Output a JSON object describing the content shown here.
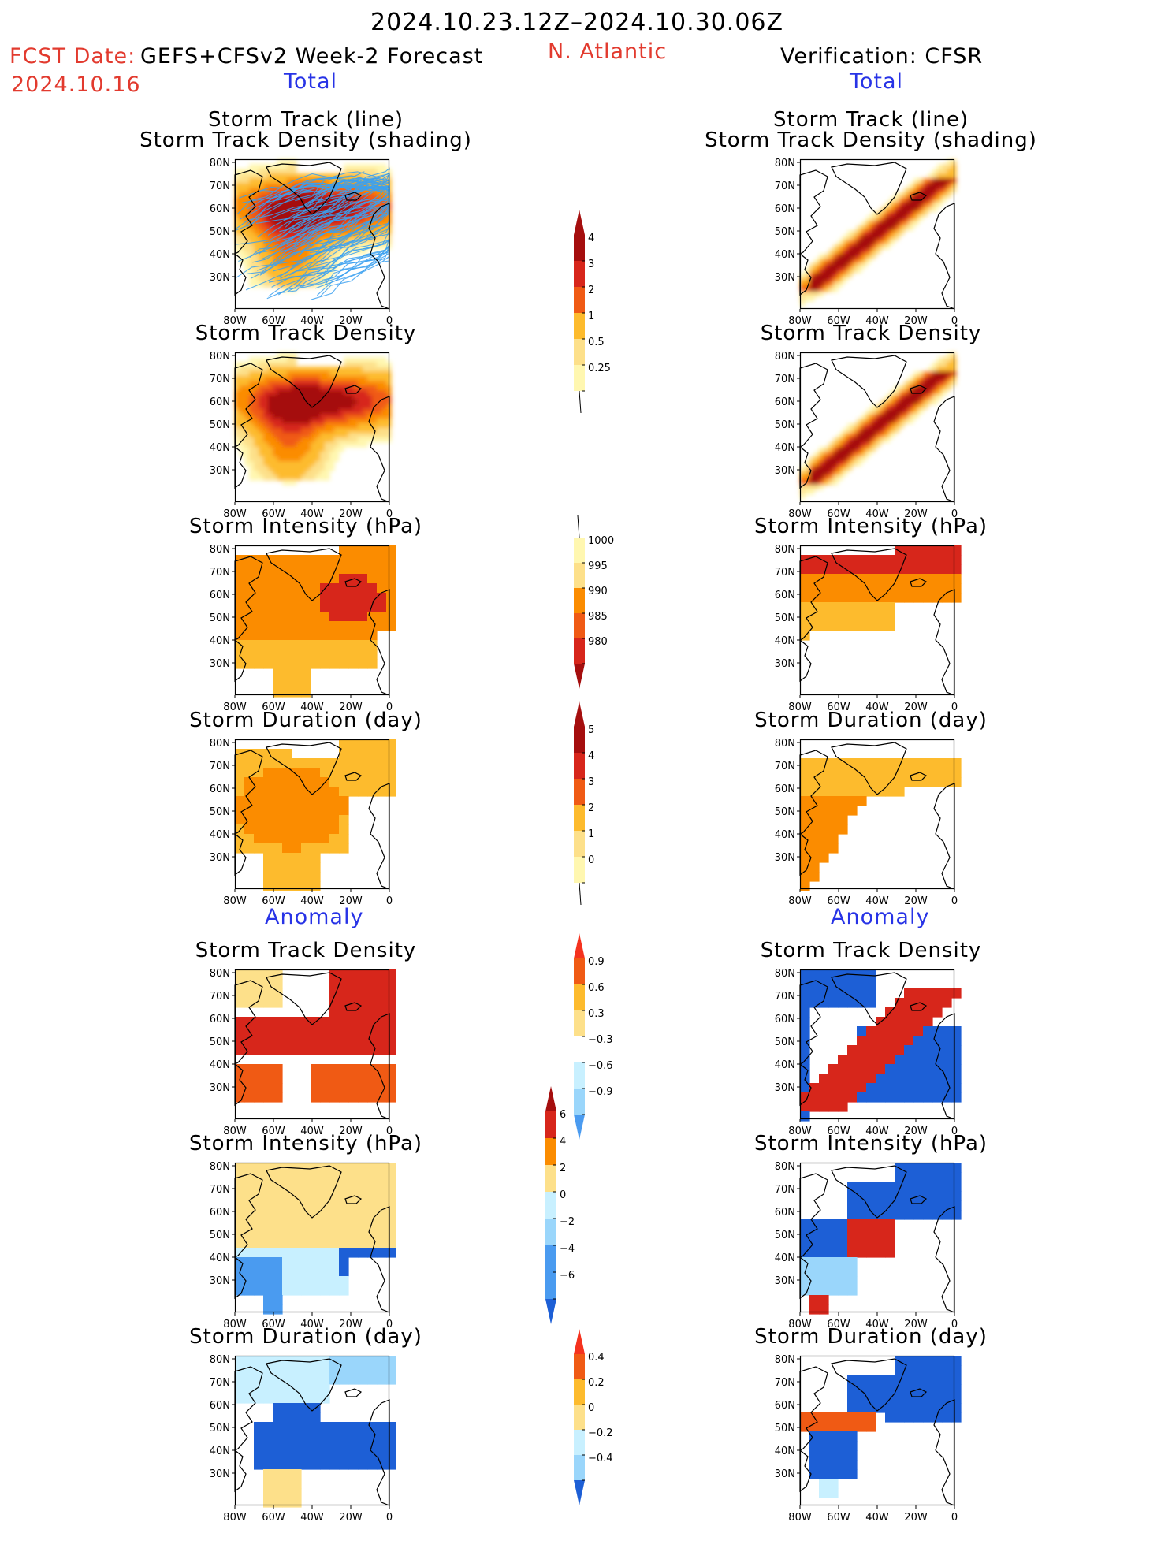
{
  "header": {
    "date_range": "2024.10.23.12Z–2024.10.30.06Z",
    "fcst_label": "FCST Date:",
    "fcst_date": "2024.10.16",
    "model": "GEFS+CFSv2 Week-2 Forecast",
    "region": "N. Atlantic",
    "verification": "Verification: CFSR"
  },
  "sections": {
    "total": "Total",
    "anomaly": "Anomaly"
  },
  "panel_titles": {
    "track_line": "Storm Track (line)",
    "track_shading": "Storm Track Density (shading)",
    "density": "Storm Track Density",
    "intensity": "Storm Intensity (hPa)",
    "duration": "Storm Duration (day)"
  },
  "axes": {
    "lat_ticks": [
      "80N",
      "70N",
      "60N",
      "50N",
      "40N",
      "30N"
    ],
    "lon_ticks": [
      "80W",
      "60W",
      "40W",
      "20W",
      "0"
    ]
  },
  "colorbars": {
    "density_total": [
      "4",
      "3",
      "2",
      "1",
      "0.5",
      "0.25"
    ],
    "intensity_total": [
      "1000",
      "995",
      "990",
      "985",
      "980"
    ],
    "duration_total": [
      "5",
      "4",
      "3",
      "2",
      "1",
      "0"
    ],
    "density_anom": [
      "0.9",
      "0.6",
      "0.3",
      "−0.3",
      "−0.6",
      "−0.9"
    ],
    "intensity_anom": [
      "6",
      "4",
      "2",
      "0",
      "−2",
      "−4",
      "−6"
    ],
    "duration_anom": [
      "0.4",
      "0.2",
      "0",
      "−0.2",
      "−0.4"
    ]
  },
  "colors": {
    "title_red": "#e23a2e",
    "section_blue": "#2733e6",
    "warm": [
      "#fff7b0",
      "#fde08a",
      "#fdbb2d",
      "#fb8c00",
      "#f05a14",
      "#d7261b",
      "#a50e0e"
    ],
    "cool": [
      "#c8f0ff",
      "#9ad6fb",
      "#4a9bf0",
      "#1d5fd6"
    ],
    "track_lines": "#3ba0f0"
  }
}
